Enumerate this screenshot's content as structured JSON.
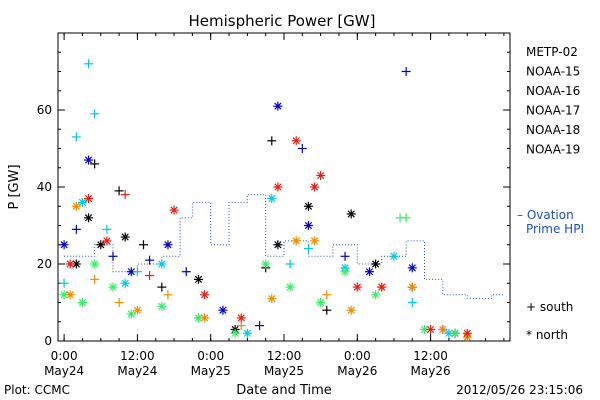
{
  "chart_data": {
    "type": "scatter",
    "title": "Hemispheric Power [GW]",
    "ylabel": "P [GW]",
    "xlabel": "Date and Time",
    "ylim": [
      0,
      80
    ],
    "y_ticks": [
      0,
      20,
      40,
      60
    ],
    "xlim": [
      "2012-05-23T23:00",
      "2012-05-27T01:00"
    ],
    "x_ticks": [
      {
        "t": "2012-05-24T00:00",
        "time": "0:00",
        "date": "May24"
      },
      {
        "t": "2012-05-24T12:00",
        "time": "12:00",
        "date": "May24"
      },
      {
        "t": "2012-05-25T00:00",
        "time": "0:00",
        "date": "May25"
      },
      {
        "t": "2012-05-25T12:00",
        "time": "12:00",
        "date": "May25"
      },
      {
        "t": "2012-05-26T00:00",
        "time": "0:00",
        "date": "May26"
      },
      {
        "t": "2012-05-26T12:00",
        "time": "12:00",
        "date": "May26"
      }
    ],
    "series": [
      {
        "name": "METP-02",
        "color": "#000000",
        "points": [
          {
            "t": "2012-05-24T02:00",
            "v": 20,
            "m": "*"
          },
          {
            "t": "2012-05-24T04:00",
            "v": 32,
            "m": "*"
          },
          {
            "t": "2012-05-24T05:00",
            "v": 46,
            "m": "+"
          },
          {
            "t": "2012-05-24T06:00",
            "v": 25,
            "m": "*"
          },
          {
            "t": "2012-05-24T09:00",
            "v": 39,
            "m": "+"
          },
          {
            "t": "2012-05-24T10:00",
            "v": 27,
            "m": "*"
          },
          {
            "t": "2012-05-24T13:00",
            "v": 25,
            "m": "+"
          },
          {
            "t": "2012-05-24T16:00",
            "v": 14,
            "m": "+"
          },
          {
            "t": "2012-05-24T22:00",
            "v": 16,
            "m": "*"
          },
          {
            "t": "2012-05-25T04:00",
            "v": 3,
            "m": "*"
          },
          {
            "t": "2012-05-25T09:00",
            "v": 19,
            "m": "+"
          },
          {
            "t": "2012-05-25T10:00",
            "v": 52,
            "m": "+"
          },
          {
            "t": "2012-05-25T11:00",
            "v": 25,
            "m": "*"
          },
          {
            "t": "2012-05-25T16:00",
            "v": 35,
            "m": "*"
          },
          {
            "t": "2012-05-25T19:00",
            "v": 8,
            "m": "+"
          },
          {
            "t": "2012-05-25T23:00",
            "v": 33,
            "m": "*"
          },
          {
            "t": "2012-05-26T03:00",
            "v": 20,
            "m": "*"
          },
          {
            "t": "2012-05-26T09:00",
            "v": 14,
            "m": "+"
          },
          {
            "t": "2012-05-26T16:00",
            "v": 2,
            "m": "*"
          }
        ]
      },
      {
        "name": "NOAA-15",
        "color": "#0000c8",
        "points": [
          {
            "t": "2012-05-24T00:00",
            "v": 25,
            "m": "*"
          },
          {
            "t": "2012-05-24T02:00",
            "v": 29,
            "m": "+"
          },
          {
            "t": "2012-05-24T04:00",
            "v": 47,
            "m": "*"
          },
          {
            "t": "2012-05-24T08:00",
            "v": 22,
            "m": "+"
          },
          {
            "t": "2012-05-24T11:00",
            "v": 18,
            "m": "*"
          },
          {
            "t": "2012-05-24T14:00",
            "v": 21,
            "m": "+"
          },
          {
            "t": "2012-05-24T17:00",
            "v": 25,
            "m": "*"
          },
          {
            "t": "2012-05-24T20:00",
            "v": 18,
            "m": "+"
          },
          {
            "t": "2012-05-25T02:00",
            "v": 8,
            "m": "*"
          },
          {
            "t": "2012-05-25T08:00",
            "v": 4,
            "m": "+"
          },
          {
            "t": "2012-05-25T11:00",
            "v": 61,
            "m": "*"
          },
          {
            "t": "2012-05-25T15:00",
            "v": 50,
            "m": "+"
          },
          {
            "t": "2012-05-25T16:00",
            "v": 30,
            "m": "*"
          },
          {
            "t": "2012-05-25T22:00",
            "v": 22,
            "m": "+"
          },
          {
            "t": "2012-05-26T02:00",
            "v": 18,
            "m": "*"
          },
          {
            "t": "2012-05-26T08:00",
            "v": 70,
            "m": "+"
          },
          {
            "t": "2012-05-26T09:00",
            "v": 19,
            "m": "*"
          },
          {
            "t": "2012-05-26T14:00",
            "v": 3,
            "m": "+"
          }
        ]
      },
      {
        "name": "NOAA-16",
        "color": "#00c8e6",
        "points": [
          {
            "t": "2012-05-24T00:00",
            "v": 15,
            "m": "+"
          },
          {
            "t": "2012-05-24T02:00",
            "v": 53,
            "m": "+"
          },
          {
            "t": "2012-05-24T03:00",
            "v": 36,
            "m": "*"
          },
          {
            "t": "2012-05-24T04:00",
            "v": 72,
            "m": "+"
          },
          {
            "t": "2012-05-24T05:00",
            "v": 59,
            "m": "+"
          },
          {
            "t": "2012-05-24T07:00",
            "v": 29,
            "m": "+"
          },
          {
            "t": "2012-05-24T10:00",
            "v": 15,
            "m": "*"
          },
          {
            "t": "2012-05-24T12:00",
            "v": 18,
            "m": "+"
          },
          {
            "t": "2012-05-24T16:00",
            "v": 20,
            "m": "*"
          },
          {
            "t": "2012-05-24T22:00",
            "v": 6,
            "m": "+"
          },
          {
            "t": "2012-05-25T06:00",
            "v": 2,
            "m": "*"
          },
          {
            "t": "2012-05-25T10:00",
            "v": 37,
            "m": "*"
          },
          {
            "t": "2012-05-25T13:00",
            "v": 20,
            "m": "+"
          },
          {
            "t": "2012-05-25T16:00",
            "v": 24,
            "m": "+"
          },
          {
            "t": "2012-05-25T22:00",
            "v": 19,
            "m": "*"
          },
          {
            "t": "2012-05-26T06:00",
            "v": 22,
            "m": "*"
          },
          {
            "t": "2012-05-26T09:00",
            "v": 10,
            "m": "+"
          },
          {
            "t": "2012-05-26T15:00",
            "v": 2,
            "m": "*"
          }
        ]
      },
      {
        "name": "NOAA-17",
        "color": "#32f064",
        "points": [
          {
            "t": "2012-05-24T00:00",
            "v": 12,
            "m": "*"
          },
          {
            "t": "2012-05-24T03:00",
            "v": 10,
            "m": "*"
          },
          {
            "t": "2012-05-24T05:00",
            "v": 20,
            "m": "*"
          },
          {
            "t": "2012-05-24T08:00",
            "v": 14,
            "m": "*"
          },
          {
            "t": "2012-05-24T11:00",
            "v": 7,
            "m": "*"
          },
          {
            "t": "2012-05-24T16:00",
            "v": 9,
            "m": "*"
          },
          {
            "t": "2012-05-24T22:00",
            "v": 6,
            "m": "*"
          },
          {
            "t": "2012-05-25T04:00",
            "v": 2,
            "m": "*"
          },
          {
            "t": "2012-05-25T09:00",
            "v": 20,
            "m": "*"
          },
          {
            "t": "2012-05-25T13:00",
            "v": 14,
            "m": "*"
          },
          {
            "t": "2012-05-25T18:00",
            "v": 10,
            "m": "*"
          },
          {
            "t": "2012-05-25T22:00",
            "v": 18,
            "m": "*"
          },
          {
            "t": "2012-05-26T03:00",
            "v": 12,
            "m": "*"
          },
          {
            "t": "2012-05-26T07:00",
            "v": 32,
            "m": "+"
          },
          {
            "t": "2012-05-26T08:00",
            "v": 32,
            "m": "+"
          },
          {
            "t": "2012-05-26T11:00",
            "v": 3,
            "m": "*"
          },
          {
            "t": "2012-05-26T16:00",
            "v": 2,
            "m": "*"
          }
        ]
      },
      {
        "name": "NOAA-18",
        "color": "#f08c00",
        "points": [
          {
            "t": "2012-05-24T01:00",
            "v": 12,
            "m": "*"
          },
          {
            "t": "2012-05-24T02:00",
            "v": 35,
            "m": "*"
          },
          {
            "t": "2012-05-24T05:00",
            "v": 16,
            "m": "+"
          },
          {
            "t": "2012-05-24T09:00",
            "v": 10,
            "m": "+"
          },
          {
            "t": "2012-05-24T12:00",
            "v": 8,
            "m": "*"
          },
          {
            "t": "2012-05-24T17:00",
            "v": 12,
            "m": "+"
          },
          {
            "t": "2012-05-24T23:00",
            "v": 6,
            "m": "*"
          },
          {
            "t": "2012-05-25T05:00",
            "v": 4,
            "m": "+"
          },
          {
            "t": "2012-05-25T10:00",
            "v": 11,
            "m": "*"
          },
          {
            "t": "2012-05-25T14:00",
            "v": 26,
            "m": "*"
          },
          {
            "t": "2012-05-25T17:00",
            "v": 26,
            "m": "*"
          },
          {
            "t": "2012-05-25T19:00",
            "v": 12,
            "m": "+"
          },
          {
            "t": "2012-05-25T23:00",
            "v": 8,
            "m": "*"
          },
          {
            "t": "2012-05-26T04:00",
            "v": 14,
            "m": "*"
          },
          {
            "t": "2012-05-26T09:00",
            "v": 14,
            "m": "*"
          },
          {
            "t": "2012-05-26T14:00",
            "v": 3,
            "m": "*"
          },
          {
            "t": "2012-05-26T18:00",
            "v": 1,
            "m": "*"
          }
        ]
      },
      {
        "name": "NOAA-19",
        "color": "#e61e14",
        "points": [
          {
            "t": "2012-05-24T01:00",
            "v": 20,
            "m": "*"
          },
          {
            "t": "2012-05-24T04:00",
            "v": 37,
            "m": "*"
          },
          {
            "t": "2012-05-24T07:00",
            "v": 26,
            "m": "*"
          },
          {
            "t": "2012-05-24T10:00",
            "v": 38,
            "m": "+"
          },
          {
            "t": "2012-05-24T14:00",
            "v": 17,
            "m": "+"
          },
          {
            "t": "2012-05-24T18:00",
            "v": 34,
            "m": "*"
          },
          {
            "t": "2012-05-24T23:00",
            "v": 12,
            "m": "*"
          },
          {
            "t": "2012-05-25T05:00",
            "v": 6,
            "m": "*"
          },
          {
            "t": "2012-05-25T11:00",
            "v": 40,
            "m": "*"
          },
          {
            "t": "2012-05-25T14:00",
            "v": 52,
            "m": "*"
          },
          {
            "t": "2012-05-25T17:00",
            "v": 40,
            "m": "*"
          },
          {
            "t": "2012-05-25T18:00",
            "v": 43,
            "m": "*"
          },
          {
            "t": "2012-05-26T00:00",
            "v": 14,
            "m": "*"
          },
          {
            "t": "2012-05-26T04:00",
            "v": 14,
            "m": "*"
          },
          {
            "t": "2012-05-26T12:00",
            "v": 3,
            "m": "*"
          },
          {
            "t": "2012-05-26T18:00",
            "v": 2,
            "m": "*"
          }
        ]
      },
      {
        "name": "Ovation Prime HPI",
        "color": "#1e50c8",
        "style": "dotted-step",
        "points": [
          {
            "t": "2012-05-24T00:00",
            "v": 22
          },
          {
            "t": "2012-05-24T05:00",
            "v": 25
          },
          {
            "t": "2012-05-24T08:00",
            "v": 18
          },
          {
            "t": "2012-05-24T12:00",
            "v": 20
          },
          {
            "t": "2012-05-24T16:00",
            "v": 22
          },
          {
            "t": "2012-05-24T19:00",
            "v": 32
          },
          {
            "t": "2012-05-24T21:00",
            "v": 36
          },
          {
            "t": "2012-05-25T00:00",
            "v": 25
          },
          {
            "t": "2012-05-25T03:00",
            "v": 36
          },
          {
            "t": "2012-05-25T06:00",
            "v": 38
          },
          {
            "t": "2012-05-25T09:00",
            "v": 22
          },
          {
            "t": "2012-05-25T12:00",
            "v": 26
          },
          {
            "t": "2012-05-25T16:00",
            "v": 22
          },
          {
            "t": "2012-05-25T20:00",
            "v": 25
          },
          {
            "t": "2012-05-26T00:00",
            "v": 20
          },
          {
            "t": "2012-05-26T04:00",
            "v": 22
          },
          {
            "t": "2012-05-26T08:00",
            "v": 26
          },
          {
            "t": "2012-05-26T11:00",
            "v": 16
          },
          {
            "t": "2012-05-26T14:00",
            "v": 12
          },
          {
            "t": "2012-05-26T18:00",
            "v": 11
          },
          {
            "t": "2012-05-26T22:00",
            "v": 12
          },
          {
            "t": "2012-05-27T00:00",
            "v": 12
          }
        ]
      }
    ],
    "legend": {
      "placement": "right",
      "entries": [
        {
          "label": "METP-02",
          "color": "#000000"
        },
        {
          "label": "NOAA-15",
          "color": "#0000c8"
        },
        {
          "label": "NOAA-16",
          "color": "#00c8e6"
        },
        {
          "label": "NOAA-17",
          "color": "#32f064"
        },
        {
          "label": "NOAA-18",
          "color": "#f08c00"
        },
        {
          "label": "NOAA-19",
          "color": "#e61e14"
        }
      ],
      "ovation": {
        "dash": "– Ovation",
        "label2": "Prime HPI",
        "color": "#1e50c8"
      },
      "markers": [
        {
          "symbol": "+",
          "label": "south"
        },
        {
          "symbol": "*",
          "label": "north"
        }
      ]
    },
    "footer_left": "Plot: CCMC",
    "footer_right": "2012/05/26 23:15:06"
  }
}
